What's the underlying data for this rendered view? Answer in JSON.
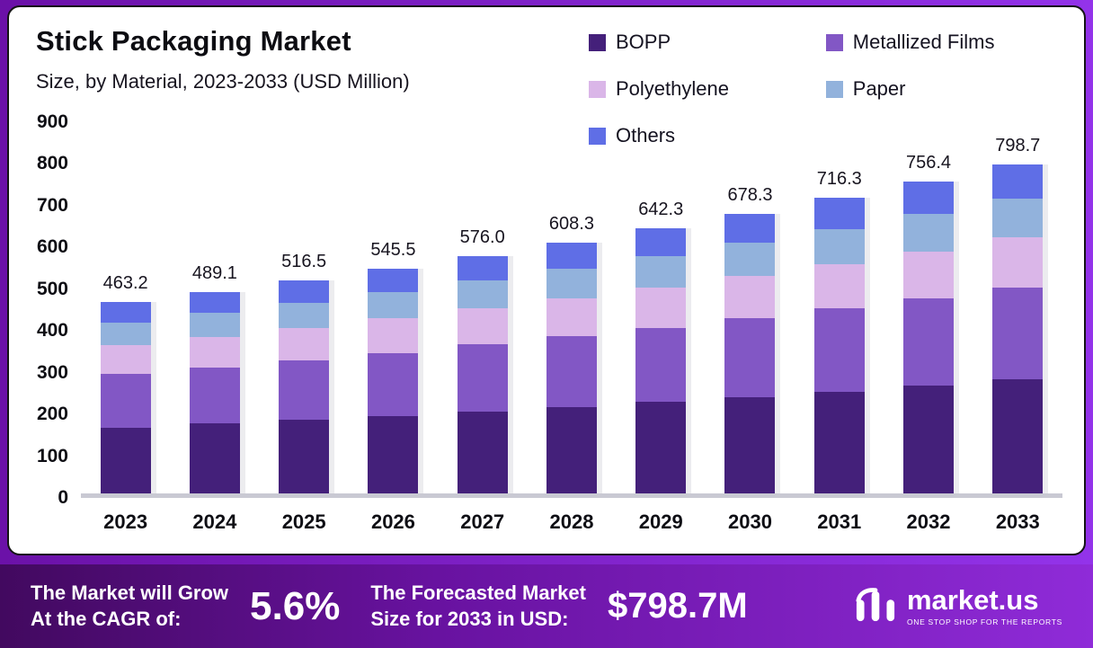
{
  "header": {
    "title": "Stick Packaging Market",
    "subtitle": "Size, by Material, 2023-2033 (USD Million)"
  },
  "chart_data": {
    "type": "bar",
    "stacked": true,
    "title": "Stick Packaging Market",
    "subtitle": "Size, by Material, 2023-2033 (USD Million)",
    "categories": [
      "2023",
      "2024",
      "2025",
      "2026",
      "2027",
      "2028",
      "2029",
      "2030",
      "2031",
      "2032",
      "2033"
    ],
    "series": [
      {
        "name": "BOPP",
        "color": "#44207a",
        "values": [
          160,
          169,
          178,
          188,
          199,
          210,
          222,
          234,
          247,
          261,
          276
        ]
      },
      {
        "name": "Metallized Films",
        "color": "#8257c5",
        "values": [
          130,
          137,
          145,
          153,
          162,
          171,
          180,
          190,
          201,
          212,
          224
        ]
      },
      {
        "name": "Polyethylene",
        "color": "#dab6e8",
        "values": [
          70,
          74,
          78,
          83,
          87,
          92,
          97,
          103,
          108,
          114,
          121
        ]
      },
      {
        "name": "Paper",
        "color": "#92b2dc",
        "values": [
          55,
          58,
          61,
          65,
          68,
          72,
          76,
          80,
          85,
          90,
          94
        ]
      },
      {
        "name": "Others",
        "color": "#5f6ee6",
        "values": [
          48.2,
          51.1,
          54.5,
          56.5,
          60.0,
          63.3,
          67.3,
          71.3,
          75.3,
          79.4,
          83.7
        ]
      }
    ],
    "totals": [
      "463.2",
      "489.1",
      "516.5",
      "545.5",
      "576.0",
      "608.3",
      "642.3",
      "678.3",
      "716.3",
      "756.4",
      "798.7"
    ],
    "ylim": [
      0,
      900
    ],
    "ytick_step": 100,
    "grid": false,
    "legend_position": "top-right"
  },
  "banner": {
    "cagr_label_line1": "The Market will Grow",
    "cagr_label_line2": "At the CAGR of:",
    "cagr_value": "5.6%",
    "forecast_label_line1": "The Forecasted Market",
    "forecast_label_line2": "Size for 2033 in USD:",
    "forecast_value": "$798.7M",
    "brand": "market.us",
    "brand_tagline": "ONE STOP SHOP FOR THE REPORTS"
  }
}
